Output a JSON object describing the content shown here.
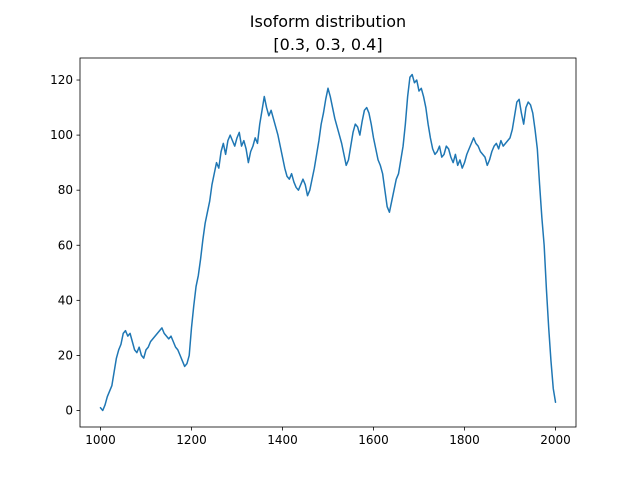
{
  "chart_data": {
    "type": "line",
    "title": "Isoform distribution",
    "subtitle": "[0.3, 0.3, 0.4]",
    "xlim": [
      955,
      2045
    ],
    "ylim": [
      -6,
      128
    ],
    "x_ticks": [
      1000,
      1200,
      1400,
      1600,
      1800,
      2000
    ],
    "y_ticks": [
      0,
      20,
      40,
      60,
      80,
      100,
      120
    ],
    "grid": false,
    "legend": "none",
    "colors": {
      "series": "#1f77b4",
      "axes": "#000000",
      "background": "#ffffff"
    },
    "series": [
      {
        "color": "#1f77b4",
        "points": [
          [
            1000,
            1
          ],
          [
            1005,
            0
          ],
          [
            1010,
            2
          ],
          [
            1015,
            5
          ],
          [
            1020,
            7
          ],
          [
            1025,
            9
          ],
          [
            1030,
            14
          ],
          [
            1035,
            19
          ],
          [
            1040,
            22
          ],
          [
            1045,
            24
          ],
          [
            1050,
            28
          ],
          [
            1055,
            29
          ],
          [
            1060,
            27
          ],
          [
            1065,
            28
          ],
          [
            1070,
            25
          ],
          [
            1075,
            22
          ],
          [
            1080,
            21
          ],
          [
            1085,
            23
          ],
          [
            1090,
            20
          ],
          [
            1095,
            19
          ],
          [
            1100,
            22
          ],
          [
            1105,
            23
          ],
          [
            1110,
            25
          ],
          [
            1115,
            26
          ],
          [
            1120,
            27
          ],
          [
            1125,
            28
          ],
          [
            1130,
            29
          ],
          [
            1135,
            30
          ],
          [
            1140,
            28
          ],
          [
            1145,
            27
          ],
          [
            1150,
            26
          ],
          [
            1155,
            27
          ],
          [
            1160,
            25
          ],
          [
            1165,
            23
          ],
          [
            1170,
            22
          ],
          [
            1175,
            20
          ],
          [
            1180,
            18
          ],
          [
            1185,
            16
          ],
          [
            1190,
            17
          ],
          [
            1195,
            20
          ],
          [
            1200,
            30
          ],
          [
            1205,
            38
          ],
          [
            1210,
            45
          ],
          [
            1215,
            49
          ],
          [
            1220,
            55
          ],
          [
            1225,
            62
          ],
          [
            1230,
            68
          ],
          [
            1235,
            72
          ],
          [
            1240,
            76
          ],
          [
            1245,
            82
          ],
          [
            1250,
            86
          ],
          [
            1255,
            90
          ],
          [
            1260,
            88
          ],
          [
            1265,
            94
          ],
          [
            1270,
            97
          ],
          [
            1275,
            93
          ],
          [
            1280,
            98
          ],
          [
            1285,
            100
          ],
          [
            1290,
            98
          ],
          [
            1295,
            96
          ],
          [
            1300,
            99
          ],
          [
            1305,
            101
          ],
          [
            1310,
            96
          ],
          [
            1315,
            98
          ],
          [
            1320,
            95
          ],
          [
            1325,
            90
          ],
          [
            1330,
            94
          ],
          [
            1335,
            96
          ],
          [
            1340,
            99
          ],
          [
            1345,
            97
          ],
          [
            1350,
            104
          ],
          [
            1355,
            109
          ],
          [
            1360,
            114
          ],
          [
            1365,
            110
          ],
          [
            1370,
            107
          ],
          [
            1375,
            109
          ],
          [
            1380,
            106
          ],
          [
            1385,
            103
          ],
          [
            1390,
            100
          ],
          [
            1395,
            96
          ],
          [
            1400,
            92
          ],
          [
            1405,
            88
          ],
          [
            1410,
            85
          ],
          [
            1415,
            84
          ],
          [
            1420,
            86
          ],
          [
            1425,
            83
          ],
          [
            1430,
            81
          ],
          [
            1435,
            80
          ],
          [
            1440,
            82
          ],
          [
            1445,
            84
          ],
          [
            1450,
            82
          ],
          [
            1455,
            78
          ],
          [
            1460,
            80
          ],
          [
            1465,
            84
          ],
          [
            1470,
            88
          ],
          [
            1475,
            93
          ],
          [
            1480,
            98
          ],
          [
            1485,
            104
          ],
          [
            1490,
            108
          ],
          [
            1495,
            113
          ],
          [
            1500,
            117
          ],
          [
            1505,
            114
          ],
          [
            1510,
            110
          ],
          [
            1515,
            106
          ],
          [
            1520,
            103
          ],
          [
            1525,
            100
          ],
          [
            1530,
            97
          ],
          [
            1535,
            93
          ],
          [
            1540,
            89
          ],
          [
            1545,
            91
          ],
          [
            1550,
            96
          ],
          [
            1555,
            101
          ],
          [
            1560,
            104
          ],
          [
            1565,
            103
          ],
          [
            1570,
            100
          ],
          [
            1575,
            105
          ],
          [
            1580,
            109
          ],
          [
            1585,
            110
          ],
          [
            1590,
            108
          ],
          [
            1595,
            104
          ],
          [
            1600,
            99
          ],
          [
            1605,
            95
          ],
          [
            1610,
            91
          ],
          [
            1615,
            89
          ],
          [
            1620,
            86
          ],
          [
            1625,
            80
          ],
          [
            1630,
            74
          ],
          [
            1635,
            72
          ],
          [
            1640,
            76
          ],
          [
            1645,
            80
          ],
          [
            1650,
            84
          ],
          [
            1655,
            86
          ],
          [
            1660,
            91
          ],
          [
            1665,
            96
          ],
          [
            1670,
            104
          ],
          [
            1675,
            114
          ],
          [
            1680,
            121
          ],
          [
            1685,
            122
          ],
          [
            1690,
            119
          ],
          [
            1695,
            120
          ],
          [
            1700,
            116
          ],
          [
            1705,
            117
          ],
          [
            1710,
            114
          ],
          [
            1715,
            110
          ],
          [
            1720,
            104
          ],
          [
            1725,
            99
          ],
          [
            1730,
            95
          ],
          [
            1735,
            93
          ],
          [
            1740,
            94
          ],
          [
            1745,
            96
          ],
          [
            1750,
            92
          ],
          [
            1755,
            93
          ],
          [
            1760,
            96
          ],
          [
            1765,
            95
          ],
          [
            1770,
            92
          ],
          [
            1775,
            90
          ],
          [
            1780,
            93
          ],
          [
            1785,
            89
          ],
          [
            1790,
            91
          ],
          [
            1795,
            88
          ],
          [
            1800,
            90
          ],
          [
            1805,
            93
          ],
          [
            1810,
            95
          ],
          [
            1815,
            97
          ],
          [
            1820,
            99
          ],
          [
            1825,
            97
          ],
          [
            1830,
            96
          ],
          [
            1835,
            94
          ],
          [
            1840,
            93
          ],
          [
            1845,
            92
          ],
          [
            1850,
            89
          ],
          [
            1855,
            91
          ],
          [
            1860,
            94
          ],
          [
            1865,
            96
          ],
          [
            1870,
            97
          ],
          [
            1875,
            95
          ],
          [
            1880,
            98
          ],
          [
            1885,
            96
          ],
          [
            1890,
            97
          ],
          [
            1895,
            98
          ],
          [
            1900,
            99
          ],
          [
            1905,
            102
          ],
          [
            1910,
            107
          ],
          [
            1915,
            112
          ],
          [
            1920,
            113
          ],
          [
            1925,
            108
          ],
          [
            1930,
            104
          ],
          [
            1935,
            110
          ],
          [
            1940,
            112
          ],
          [
            1945,
            111
          ],
          [
            1950,
            108
          ],
          [
            1955,
            102
          ],
          [
            1960,
            95
          ],
          [
            1965,
            82
          ],
          [
            1970,
            70
          ],
          [
            1975,
            60
          ],
          [
            1980,
            44
          ],
          [
            1985,
            30
          ],
          [
            1990,
            18
          ],
          [
            1995,
            8
          ],
          [
            2000,
            3
          ]
        ]
      }
    ]
  }
}
